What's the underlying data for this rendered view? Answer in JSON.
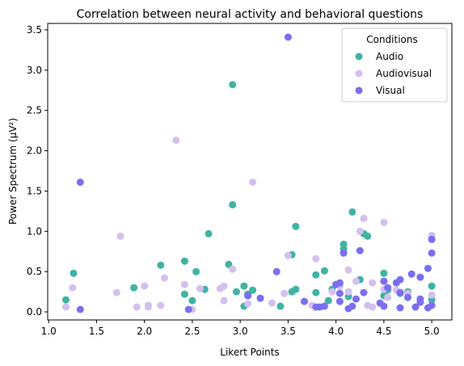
{
  "chart_data": {
    "type": "scatter",
    "title": "Correlation between neural activity and behavioral questions",
    "xlabel": "Likert Points",
    "ylabel": "Power Spectrum (µV²)",
    "xlim": [
      0.99,
      5.21
    ],
    "ylim": [
      -0.1,
      3.58
    ],
    "xticks": [
      1.0,
      1.5,
      2.0,
      2.5,
      3.0,
      3.5,
      4.0,
      4.5,
      5.0
    ],
    "yticks": [
      0.0,
      0.5,
      1.0,
      1.5,
      2.0,
      2.5,
      3.0,
      3.5
    ],
    "grid": false,
    "legend": {
      "title": "Conditions",
      "position": "top-right"
    },
    "series": [
      {
        "name": "Audio",
        "color": "#40b3a2",
        "points": [
          [
            1.18,
            0.15
          ],
          [
            1.26,
            0.48
          ],
          [
            1.89,
            0.3
          ],
          [
            2.17,
            0.58
          ],
          [
            2.42,
            0.63
          ],
          [
            2.42,
            0.22
          ],
          [
            2.5,
            0.14
          ],
          [
            2.54,
            0.5
          ],
          [
            2.63,
            0.28
          ],
          [
            2.67,
            0.97
          ],
          [
            2.88,
            0.59
          ],
          [
            2.92,
            1.33
          ],
          [
            2.92,
            2.82
          ],
          [
            2.96,
            0.25
          ],
          [
            3.04,
            0.32
          ],
          [
            3.08,
            0.22
          ],
          [
            3.13,
            0.27
          ],
          [
            3.42,
            0.07
          ],
          [
            3.54,
            0.25
          ],
          [
            3.54,
            0.71
          ],
          [
            3.58,
            0.28
          ],
          [
            3.58,
            1.06
          ],
          [
            3.79,
            0.46
          ],
          [
            3.79,
            0.24
          ],
          [
            3.88,
            0.51
          ],
          [
            3.92,
            0.14
          ],
          [
            3.96,
            0.28
          ],
          [
            4.08,
            0.84
          ],
          [
            4.08,
            0.78
          ],
          [
            4.17,
            1.24
          ],
          [
            4.29,
            0.97
          ],
          [
            4.33,
            0.94
          ],
          [
            4.25,
            0.4
          ],
          [
            4.5,
            0.48
          ],
          [
            4.54,
            0.27
          ],
          [
            4.5,
            0.2
          ],
          [
            4.75,
            0.25
          ],
          [
            4.67,
            0.23
          ],
          [
            5.0,
            0.32
          ],
          [
            5.0,
            0.15
          ],
          [
            3.04,
            0.07
          ],
          [
            4.13,
            0.19
          ]
        ]
      },
      {
        "name": "Audiovisual",
        "color": "#d4c0ee",
        "points": [
          [
            1.18,
            0.06
          ],
          [
            1.25,
            0.3
          ],
          [
            1.71,
            0.24
          ],
          [
            1.75,
            0.94
          ],
          [
            1.92,
            0.06
          ],
          [
            2.0,
            0.32
          ],
          [
            2.04,
            0.08
          ],
          [
            2.04,
            0.06
          ],
          [
            2.17,
            0.08
          ],
          [
            2.21,
            0.42
          ],
          [
            2.33,
            2.13
          ],
          [
            2.42,
            0.34
          ],
          [
            2.5,
            0.03
          ],
          [
            2.58,
            0.29
          ],
          [
            2.79,
            0.29
          ],
          [
            2.83,
            0.32
          ],
          [
            2.83,
            0.14
          ],
          [
            2.92,
            0.53
          ],
          [
            3.08,
            0.1
          ],
          [
            3.13,
            1.61
          ],
          [
            3.33,
            0.11
          ],
          [
            3.46,
            0.23
          ],
          [
            3.5,
            0.7
          ],
          [
            3.75,
            0.08
          ],
          [
            3.79,
            0.66
          ],
          [
            4.04,
            0.32
          ],
          [
            4.13,
            0.52
          ],
          [
            4.13,
            0.25
          ],
          [
            4.21,
            0.38
          ],
          [
            4.25,
            1.0
          ],
          [
            4.29,
            1.16
          ],
          [
            4.33,
            0.08
          ],
          [
            4.38,
            0.36
          ],
          [
            4.38,
            0.06
          ],
          [
            4.5,
            0.28
          ],
          [
            4.5,
            1.11
          ],
          [
            4.54,
            0.18
          ],
          [
            4.54,
            0.3
          ],
          [
            4.75,
            0.23
          ],
          [
            5.0,
            0.95
          ],
          [
            5.0,
            0.21
          ],
          [
            3.96,
            0.25
          ],
          [
            4.63,
            0.27
          ]
        ]
      },
      {
        "name": "Visual",
        "color": "#7b6ef0",
        "points": [
          [
            1.33,
            0.03
          ],
          [
            1.33,
            1.61
          ],
          [
            2.46,
            0.03
          ],
          [
            3.08,
            0.2
          ],
          [
            3.21,
            0.17
          ],
          [
            3.38,
            0.5
          ],
          [
            3.5,
            3.41
          ],
          [
            3.67,
            0.13
          ],
          [
            3.79,
            0.06
          ],
          [
            3.83,
            0.06
          ],
          [
            3.88,
            0.07
          ],
          [
            4.0,
            0.34
          ],
          [
            4.04,
            0.36
          ],
          [
            4.04,
            0.23
          ],
          [
            4.04,
            0.13
          ],
          [
            4.08,
            0.73
          ],
          [
            4.13,
            0.04
          ],
          [
            4.17,
            0.07
          ],
          [
            4.21,
            0.16
          ],
          [
            4.25,
            0.76
          ],
          [
            4.29,
            0.24
          ],
          [
            4.46,
            0.11
          ],
          [
            4.5,
            0.38
          ],
          [
            4.5,
            0.07
          ],
          [
            4.63,
            0.36
          ],
          [
            4.67,
            0.4
          ],
          [
            4.67,
            0.05
          ],
          [
            4.75,
            0.18
          ],
          [
            4.79,
            0.47
          ],
          [
            4.83,
            0.06
          ],
          [
            4.88,
            0.16
          ],
          [
            4.88,
            0.43
          ],
          [
            4.96,
            0.54
          ],
          [
            4.96,
            0.05
          ],
          [
            5.0,
            0.9
          ],
          [
            5.0,
            0.73
          ],
          [
            5.0,
            0.08
          ],
          [
            4.67,
            0.24
          ],
          [
            4.88,
            0.12
          ],
          [
            4.54,
            0.3
          ]
        ]
      }
    ]
  }
}
